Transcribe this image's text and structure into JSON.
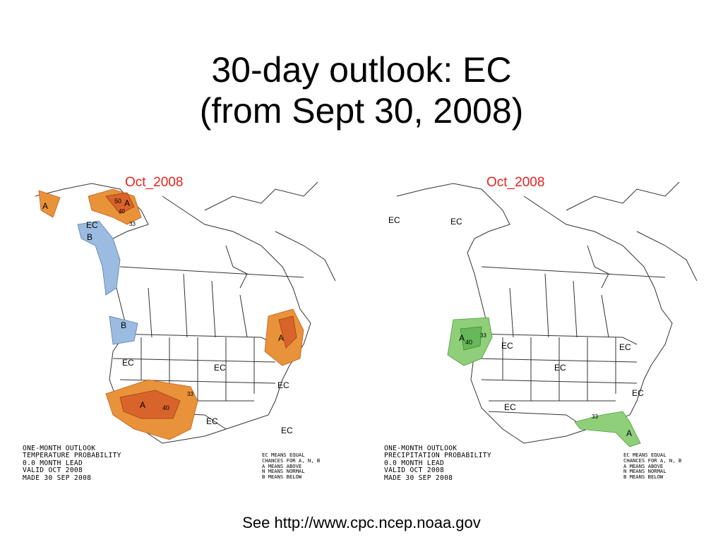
{
  "title": {
    "line1": "30-day outlook: EC",
    "line2": "(from Sept 30, 2008)"
  },
  "maps": [
    {
      "id": "temperature",
      "month": "Oct_2008",
      "info_lines": [
        "ONE-MONTH OUTLOOK",
        "TEMPERATURE PROBABILITY",
        "0.0 MONTH LEAD",
        "VALID OCT 2008",
        "MADE 30 SEP 2008"
      ],
      "legend_lines": [
        "EC MEANS EQUAL",
        "CHANCES FOR A, N, B",
        "A MEANS ABOVE",
        "N MEANS NORMAL",
        "B MEANS BELOW"
      ],
      "region_labels": [
        "A",
        "50",
        "A",
        "40",
        "33",
        "EC",
        "B",
        "B",
        "A",
        "EC",
        "EC",
        "A",
        "40",
        "33",
        "EC",
        "EC",
        "EC"
      ],
      "colors": {
        "above": "#e8923a",
        "above_strong": "#d9642b",
        "below": "#9bbbe0",
        "below_strong": "#7a9fd6"
      }
    },
    {
      "id": "precipitation",
      "month": "Oct_2008",
      "info_lines": [
        "ONE-MONTH OUTLOOK",
        "PRECIPITATION PROBABILITY",
        "0.0 MONTH LEAD",
        "VALID OCT 2008",
        "MADE 30 SEP 2008"
      ],
      "legend_lines": [
        "EC MEANS EQUAL",
        "CHANCES FOR A, N, B",
        "A MEANS ABOVE",
        "N MEANS NORMAL",
        "B MEANS BELOW"
      ],
      "region_labels": [
        "EC",
        "EC",
        "A",
        "40",
        "33",
        "EC",
        "EC",
        "EC",
        "EC",
        "33",
        "A",
        "EC"
      ],
      "colors": {
        "above": "#8fcf7a",
        "above_strong": "#66b85a"
      }
    }
  ],
  "footer": "See http://www.cpc.ncep.noaa.gov"
}
